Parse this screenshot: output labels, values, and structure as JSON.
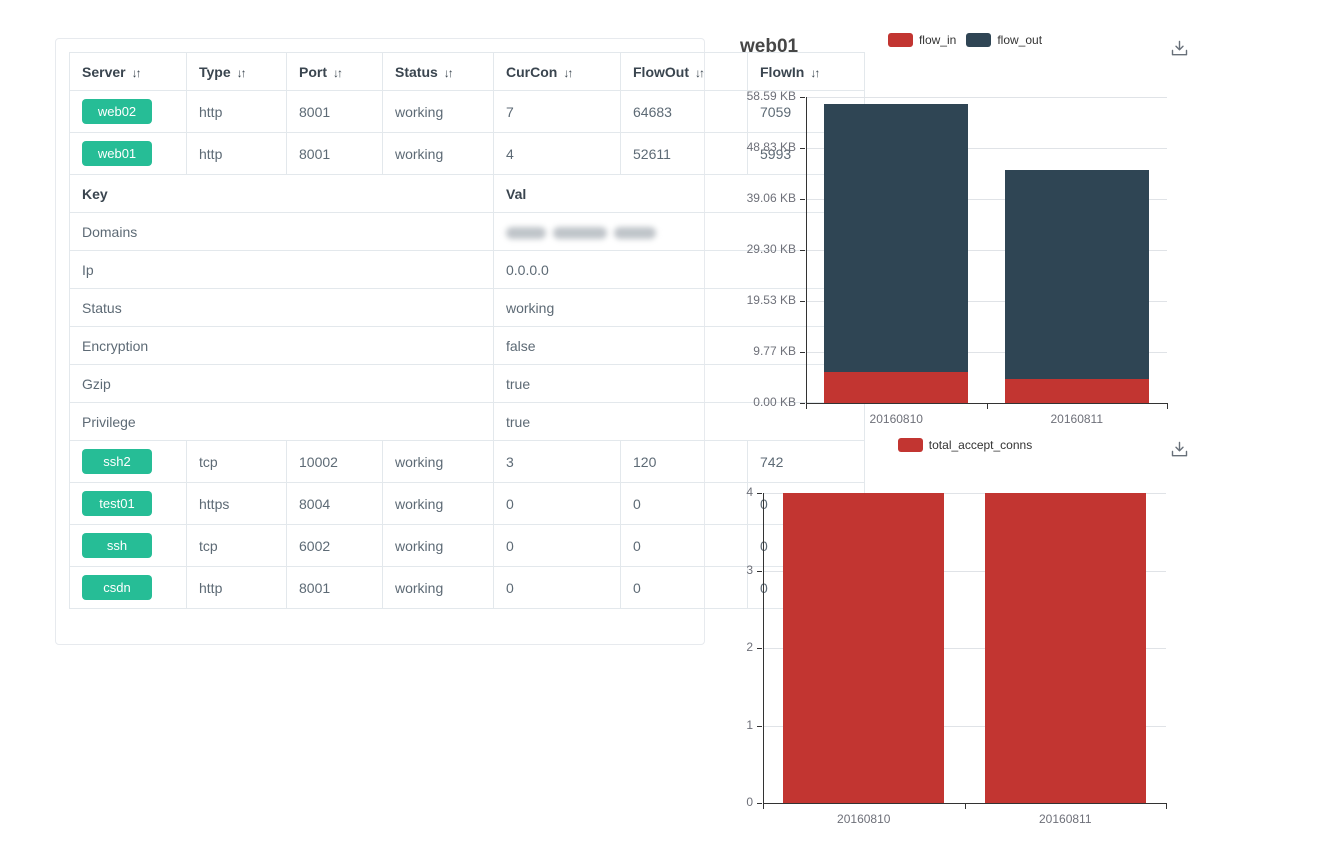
{
  "table": {
    "columns": [
      {
        "label": "Server"
      },
      {
        "label": "Type"
      },
      {
        "label": "Port"
      },
      {
        "label": "Status"
      },
      {
        "label": "CurCon"
      },
      {
        "label": "FlowOut"
      },
      {
        "label": "FlowIn"
      }
    ],
    "sort_icon": "↓↑",
    "server_rows_top": [
      {
        "name": "web02",
        "type": "http",
        "port": "8001",
        "status": "working",
        "curcon": "7",
        "flowout": "64683",
        "flowin": "7059"
      },
      {
        "name": "web01",
        "type": "http",
        "port": "8001",
        "status": "working",
        "curcon": "4",
        "flowout": "52611",
        "flowin": "5993"
      }
    ],
    "kv_header": {
      "key": "Key",
      "val": "Val"
    },
    "kv_rows": [
      {
        "key": "Domains",
        "val": "",
        "blurred": true
      },
      {
        "key": "Ip",
        "val": "0.0.0.0"
      },
      {
        "key": "Status",
        "val": "working"
      },
      {
        "key": "Encryption",
        "val": "false"
      },
      {
        "key": "Gzip",
        "val": "true"
      },
      {
        "key": "Privilege",
        "val": "true"
      }
    ],
    "server_rows_bottom": [
      {
        "name": "ssh2",
        "type": "tcp",
        "port": "10002",
        "status": "working",
        "curcon": "3",
        "flowout": "120",
        "flowin": "742"
      },
      {
        "name": "test01",
        "type": "https",
        "port": "8004",
        "status": "working",
        "curcon": "0",
        "flowout": "0",
        "flowin": "0"
      },
      {
        "name": "ssh",
        "type": "tcp",
        "port": "6002",
        "status": "working",
        "curcon": "0",
        "flowout": "0",
        "flowin": "0"
      },
      {
        "name": "csdn",
        "type": "http",
        "port": "8001",
        "status": "working",
        "curcon": "0",
        "flowout": "0",
        "flowin": "0"
      }
    ]
  },
  "chart_data": [
    {
      "type": "bar",
      "stacked": true,
      "title": "web01",
      "categories": [
        "20160810",
        "20160811"
      ],
      "series": [
        {
          "name": "flow_in",
          "color": "#c23531",
          "values": [
            5.85,
            4.6
          ]
        },
        {
          "name": "flow_out",
          "color": "#2f4554",
          "values": [
            51.38,
            40.0
          ]
        }
      ],
      "unit": "KB",
      "yticks": [
        "0.00 KB",
        "9.77 KB",
        "19.53 KB",
        "29.30 KB",
        "39.06 KB",
        "48.83 KB",
        "58.59 KB"
      ],
      "ymax": 58.59,
      "legend_position": "top-center",
      "grid": true
    },
    {
      "type": "bar",
      "stacked": false,
      "title": "",
      "categories": [
        "20160810",
        "20160811"
      ],
      "series": [
        {
          "name": "total_accept_conns",
          "color": "#c23531",
          "values": [
            4,
            4
          ]
        }
      ],
      "yticks": [
        "0",
        "1",
        "2",
        "3",
        "4"
      ],
      "ymax": 4,
      "legend_position": "top-center",
      "grid": true
    }
  ],
  "colors": {
    "badge": "#26bd96",
    "flow_in": "#c23531",
    "flow_out": "#2f4554",
    "axis": "#333333",
    "grid": "#e0e3e7",
    "header_text": "#3a454f",
    "body_text": "#5d6a75",
    "icon": "#687079"
  }
}
